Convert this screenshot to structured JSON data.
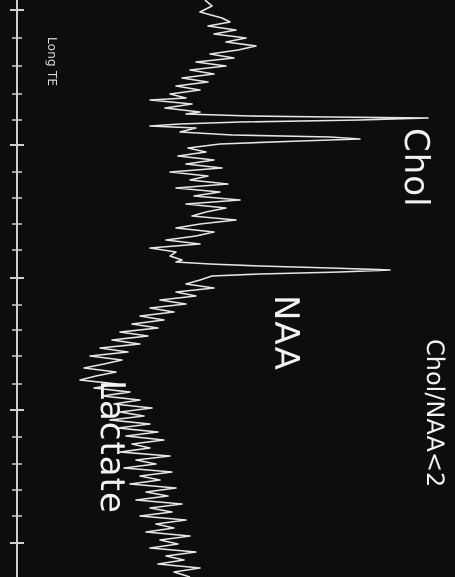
{
  "labels": {
    "sequence": "Long TE",
    "peak1": "Chol",
    "peak2": "NAA",
    "peak3": "Lactate",
    "ratio": "Chol/NAA<2"
  },
  "colors": {
    "background": "#0d0d0d",
    "trace": "#e6e6e6",
    "axis": "#cfcfcf"
  }
}
